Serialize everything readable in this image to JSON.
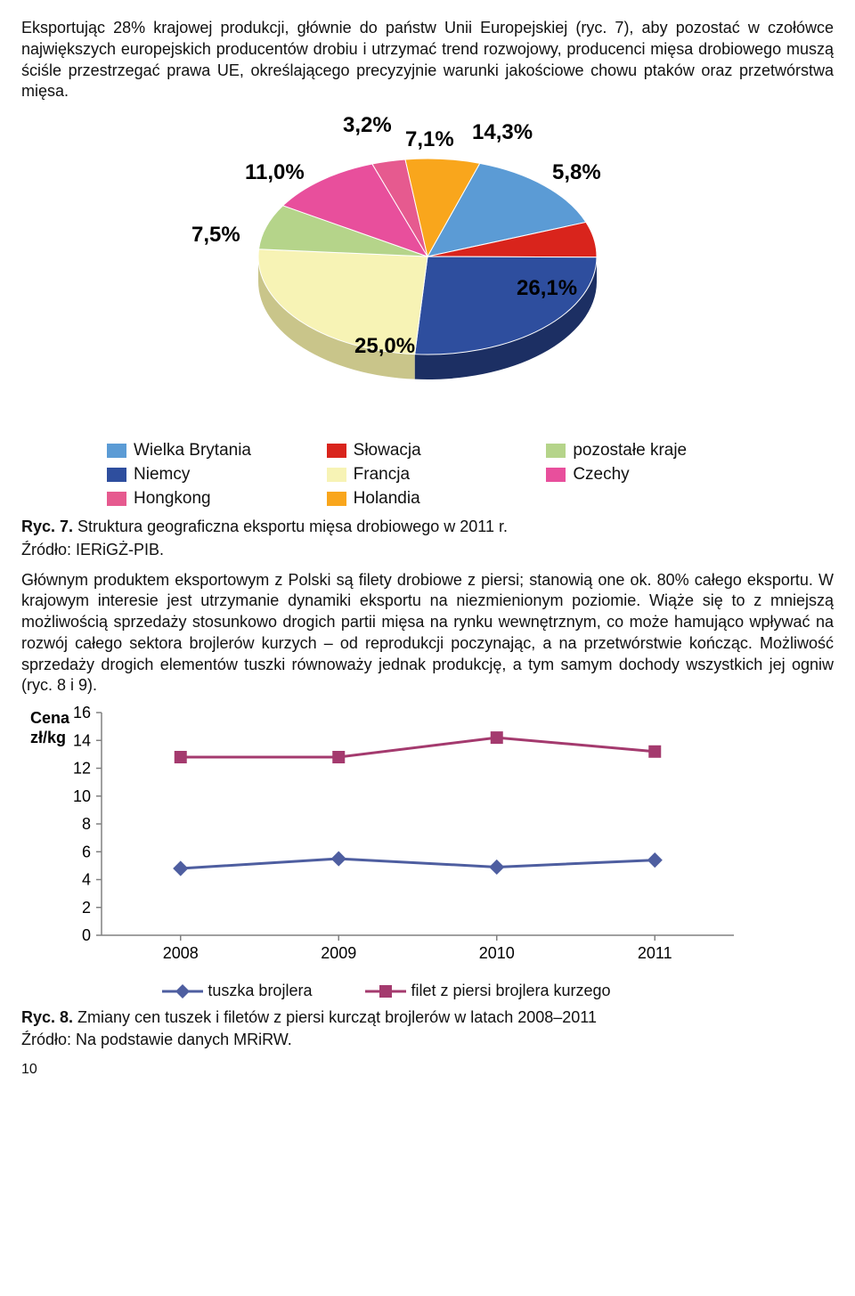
{
  "para1": "Eksportując 28% krajowej produkcji, głównie do państw Unii Europejskiej (ryc. 7), aby pozostać w czołówce największych europejskich producentów drobiu i utrzymać trend rozwojowy, producenci mięsa drobiowego muszą ściśle przestrzegać prawa UE, określającego precyzyjnie warunki jakościowe chowu ptaków oraz przetwórstwa mięsa.",
  "pie": {
    "type": "pie",
    "background_color": "#ffffff",
    "label_fontsize": 24,
    "label_fontweight": "bold",
    "slices": [
      {
        "label": "Wielka Brytania",
        "value": 14.3,
        "display": "14,3%",
        "color": "#5b9bd5",
        "side_color": "#3a6ea8"
      },
      {
        "label": "Słowacja",
        "value": 5.8,
        "display": "5,8%",
        "color": "#d9241c",
        "side_color": "#961611"
      },
      {
        "label": "Niemcy",
        "value": 26.1,
        "display": "26,1%",
        "color": "#2e4e9e",
        "side_color": "#1c2f63"
      },
      {
        "label": "Francja",
        "value": 25.0,
        "display": "25,0%",
        "color": "#f7f3b5",
        "side_color": "#c9c58a"
      },
      {
        "label": "pozostałe kraje",
        "value": 7.5,
        "display": "7,5%",
        "color": "#b5d48a",
        "side_color": "#8aa567"
      },
      {
        "label": "Czechy",
        "value": 11.0,
        "display": "11,0%",
        "color": "#e84f9c",
        "side_color": "#b83a78"
      },
      {
        "label": "Hongkong",
        "value": 3.2,
        "display": "3,2%",
        "color": "#e65a8f",
        "side_color": "#b3416c"
      },
      {
        "label": "Holandia",
        "value": 7.1,
        "display": "7,1%",
        "color": "#f9a61c",
        "side_color": "#c67f10"
      }
    ],
    "legend_order": [
      0,
      1,
      4,
      2,
      3,
      5,
      6,
      7
    ]
  },
  "caption1_bold": "Ryc. 7.",
  "caption1_text": " Struktura geograficzna eksportu mięsa drobiowego w 2011 r.",
  "source1": "Źródło: IERiGŻ-PIB.",
  "para2": "Głównym produktem eksportowym z Polski są filety drobiowe z piersi; stanowią one ok. 80% całego eksportu. W krajowym interesie jest utrzymanie dynamiki eksportu na niezmienionym poziomie. Wiąże się to z mniejszą możliwością sprzedaży stosunkowo drogich partii mięsa na rynku wewnętrznym, co może hamująco wpływać na rozwój całego sektora brojlerów kurzych – od reprodukcji poczynając, a na przetwórstwie kończąc. Możliwość sprzedaży drogich elementów tuszki równoważy jednak produkcję, a tym samym dochody wszystkich jej ogniw (ryc. 8 i 9).",
  "line": {
    "type": "line",
    "y_title1": "Cena",
    "y_title2": "zł/kg",
    "categories": [
      "2008",
      "2009",
      "2010",
      "2011"
    ],
    "ylim": [
      0,
      16
    ],
    "ytick_step": 2,
    "yticks": [
      "0",
      "2",
      "4",
      "6",
      "8",
      "10",
      "12",
      "14",
      "16"
    ],
    "series": [
      {
        "name": "tuszka brojlera",
        "color": "#4e5ea0",
        "marker": "diamond",
        "marker_size": 12,
        "line_width": 3,
        "values": [
          4.8,
          5.5,
          4.9,
          5.4
        ]
      },
      {
        "name": "filet z piersi brojlera kurzego",
        "color": "#a43a6e",
        "marker": "square",
        "marker_size": 14,
        "line_width": 3,
        "values": [
          12.8,
          12.8,
          14.2,
          13.2
        ]
      }
    ],
    "axis_color": "#808080",
    "tick_fontsize": 18,
    "background_color": "#ffffff"
  },
  "caption2_bold": "Ryc. 8.",
  "caption2_text": " Zmiany cen tuszek i filetów z piersi kurcząt brojlerów w latach 2008–2011",
  "source2": "Źródło: Na podstawie danych MRiRW.",
  "pagenum": "10"
}
